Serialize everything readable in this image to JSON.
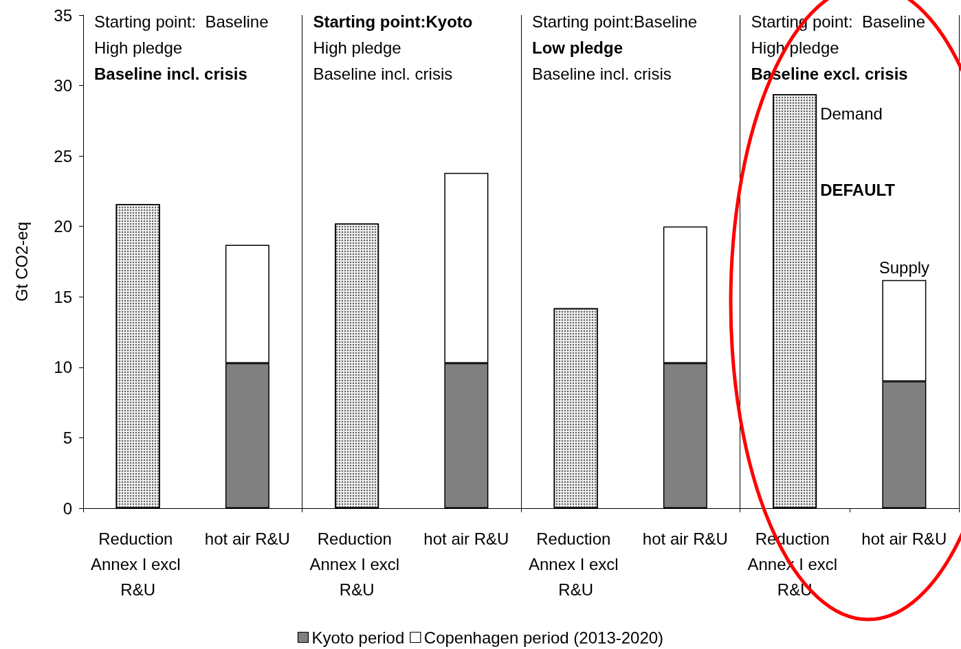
{
  "chart_data": {
    "type": "bar",
    "stacked": true,
    "ylabel": "Gt CO2-eq",
    "categories": [
      "Reduction Annex I excl R&U",
      "hot air R&U",
      "Reduction Annex I excl R&U",
      "hot air R&U",
      "Reduction Annex I excl R&U",
      "hot air R&U",
      "Reduction Annex I excl R&U",
      "hot air R&U"
    ],
    "series": [
      {
        "color": "#f2f2f2",
        "values": [
          21.6,
          null,
          20.2,
          null,
          14.2,
          null,
          29.4,
          null
        ]
      },
      {
        "name": "Kyoto period",
        "color": "#808080",
        "values": [
          null,
          10.3,
          null,
          10.3,
          null,
          10.3,
          null,
          9.0
        ]
      },
      {
        "name": "Copenhagen period (2013-2020)",
        "color": "#ffffff",
        "values": [
          null,
          8.4,
          null,
          13.5,
          null,
          9.7,
          null,
          7.2
        ]
      }
    ],
    "ylim": [
      0,
      35
    ],
    "yticks": [
      0,
      5,
      10,
      15,
      20,
      25,
      30,
      35
    ],
    "grid": "x",
    "legend": "bottom",
    "annotations": [
      "Starting point:  Baseline",
      "High pledge",
      "Baseline incl. crisis",
      "Starting point:Kyoto",
      "High pledge",
      "Baseline incl. crisis",
      "Starting point:Baseline",
      "Low pledge",
      "Baseline incl. crisis",
      "Starting point:  Baseline",
      "High pledge",
      "Baseline excl. crisis",
      "Demand",
      "DEFAULT",
      "Supply"
    ]
  }
}
